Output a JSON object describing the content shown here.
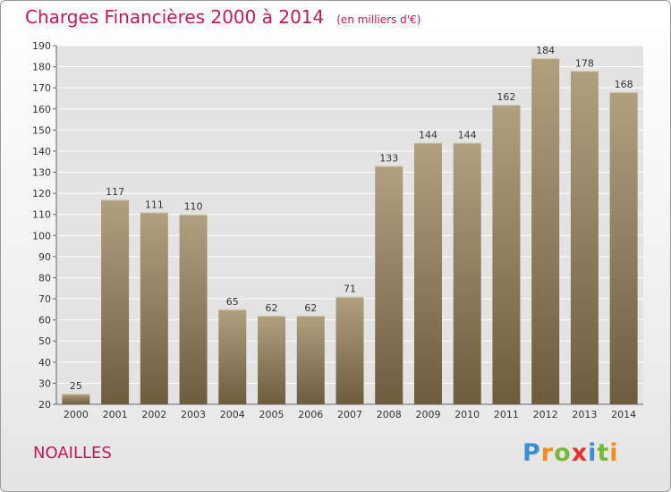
{
  "header": {
    "title": "Charges Financières 2000 à 2014",
    "unit": "(en milliers d'€)"
  },
  "footer": {
    "city": "NOAILLES",
    "logo": "Proxiti"
  },
  "chart_data": {
    "type": "bar",
    "title": "Charges Financières 2000 à 2014",
    "ylabel": "",
    "xlabel": "",
    "categories": [
      "2000",
      "2001",
      "2002",
      "2003",
      "2004",
      "2005",
      "2006",
      "2007",
      "2008",
      "2009",
      "2010",
      "2011",
      "2012",
      "2013",
      "2014"
    ],
    "values": [
      25,
      117,
      111,
      110,
      65,
      62,
      62,
      71,
      133,
      144,
      144,
      162,
      184,
      178,
      168
    ],
    "ylim": [
      20,
      190
    ],
    "yticks": [
      20,
      30,
      40,
      50,
      60,
      70,
      80,
      90,
      100,
      110,
      120,
      130,
      140,
      150,
      160,
      170,
      180,
      190
    ],
    "grid": true,
    "bar_color_top": "#b0a080",
    "bar_color_bottom": "#6e5c3e",
    "legend": "none"
  }
}
